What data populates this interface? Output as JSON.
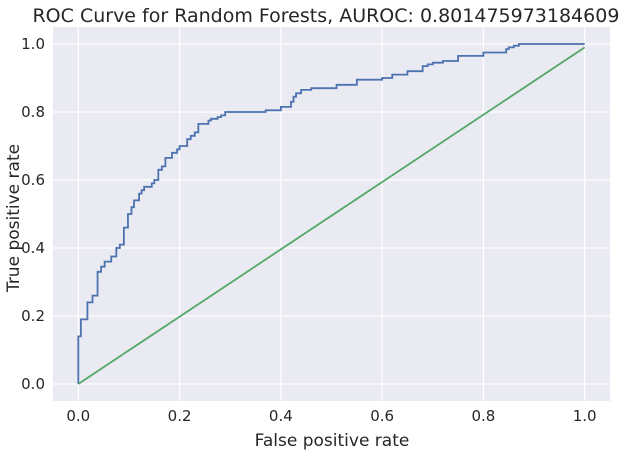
{
  "chart_data": {
    "type": "line",
    "title": "ROC Curve for Random Forests, AUROC: 0.8014759731846093",
    "xlabel": "False positive rate",
    "ylabel": "True positive rate",
    "xlim": [
      -0.05,
      1.05
    ],
    "ylim": [
      -0.05,
      1.05
    ],
    "x_ticks": [
      "0.0",
      "0.2",
      "0.4",
      "0.6",
      "0.8",
      "1.0"
    ],
    "y_ticks": [
      "0.0",
      "0.2",
      "0.4",
      "0.6",
      "0.8",
      "1.0"
    ],
    "grid": true,
    "legend": "none",
    "background_color": "#eaeaf2",
    "series": [
      {
        "color": "#4c72b0",
        "step": true,
        "x": [
          0.0,
          0.0,
          0.005,
          0.005,
          0.018,
          0.018,
          0.028,
          0.028,
          0.038,
          0.038,
          0.045,
          0.045,
          0.052,
          0.052,
          0.065,
          0.065,
          0.075,
          0.075,
          0.082,
          0.082,
          0.09,
          0.09,
          0.098,
          0.098,
          0.105,
          0.105,
          0.11,
          0.11,
          0.12,
          0.12,
          0.125,
          0.125,
          0.13,
          0.13,
          0.145,
          0.145,
          0.15,
          0.15,
          0.158,
          0.158,
          0.165,
          0.165,
          0.172,
          0.172,
          0.185,
          0.185,
          0.195,
          0.195,
          0.2,
          0.2,
          0.215,
          0.215,
          0.222,
          0.222,
          0.23,
          0.23,
          0.237,
          0.237,
          0.257,
          0.257,
          0.262,
          0.262,
          0.275,
          0.275,
          0.282,
          0.282,
          0.29,
          0.29,
          0.37,
          0.37,
          0.4,
          0.4,
          0.42,
          0.42,
          0.425,
          0.425,
          0.43,
          0.43,
          0.44,
          0.44,
          0.46,
          0.46,
          0.51,
          0.51,
          0.55,
          0.55,
          0.6,
          0.6,
          0.62,
          0.62,
          0.65,
          0.65,
          0.68,
          0.68,
          0.69,
          0.69,
          0.7,
          0.7,
          0.72,
          0.72,
          0.75,
          0.75,
          0.8,
          0.8,
          0.845,
          0.845,
          0.85,
          0.85,
          0.86,
          0.86,
          0.87,
          0.87,
          1.0
        ],
        "y": [
          0.0,
          0.14,
          0.14,
          0.19,
          0.19,
          0.24,
          0.24,
          0.26,
          0.26,
          0.33,
          0.33,
          0.345,
          0.345,
          0.36,
          0.36,
          0.375,
          0.375,
          0.4,
          0.4,
          0.41,
          0.41,
          0.46,
          0.46,
          0.5,
          0.5,
          0.52,
          0.52,
          0.54,
          0.54,
          0.56,
          0.56,
          0.57,
          0.57,
          0.58,
          0.58,
          0.59,
          0.59,
          0.6,
          0.6,
          0.63,
          0.63,
          0.64,
          0.64,
          0.665,
          0.665,
          0.68,
          0.68,
          0.69,
          0.69,
          0.7,
          0.7,
          0.72,
          0.72,
          0.73,
          0.73,
          0.74,
          0.74,
          0.765,
          0.765,
          0.775,
          0.775,
          0.78,
          0.78,
          0.785,
          0.785,
          0.79,
          0.79,
          0.8,
          0.8,
          0.805,
          0.805,
          0.815,
          0.815,
          0.83,
          0.83,
          0.845,
          0.845,
          0.855,
          0.855,
          0.865,
          0.865,
          0.87,
          0.87,
          0.88,
          0.88,
          0.895,
          0.895,
          0.9,
          0.9,
          0.91,
          0.91,
          0.92,
          0.92,
          0.935,
          0.935,
          0.94,
          0.94,
          0.945,
          0.945,
          0.95,
          0.95,
          0.965,
          0.965,
          0.975,
          0.975,
          0.985,
          0.985,
          0.99,
          0.99,
          0.995,
          0.995,
          1.0,
          1.0
        ]
      },
      {
        "color": "#55a868",
        "step": false,
        "x": [
          0.0,
          1.0
        ],
        "y": [
          0.0,
          0.99
        ]
      }
    ]
  }
}
